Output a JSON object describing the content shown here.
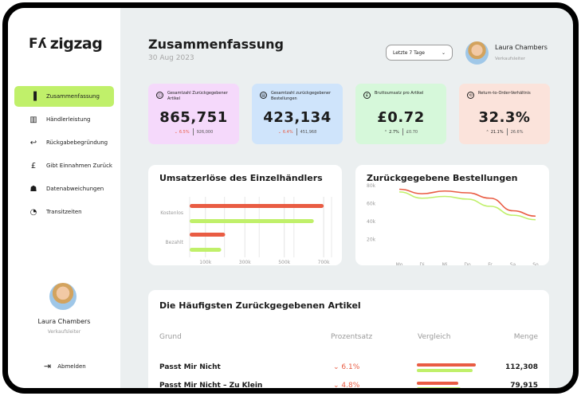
{
  "brand": {
    "name": "zigzag",
    "mark": "Fʎ"
  },
  "sidebar": {
    "items": [
      {
        "label": "Zusammenfassung",
        "icon": "file-icon",
        "glyph": "▐",
        "active": true
      },
      {
        "label": "Händlerleistung",
        "icon": "bar-chart-icon",
        "glyph": "▥",
        "active": false
      },
      {
        "label": "Rückgabebegründung",
        "icon": "return-arrow-icon",
        "glyph": "↩",
        "active": false
      },
      {
        "label": "Gibt Einnahmen Zurück",
        "icon": "pound-icon",
        "glyph": "£",
        "active": false
      },
      {
        "label": "Datenabweichungen",
        "icon": "cluster-icon",
        "glyph": "☗",
        "active": false
      },
      {
        "label": "Transitzeiten",
        "icon": "speedometer-icon",
        "glyph": "◔",
        "active": false
      }
    ],
    "user": {
      "name": "Laura Chambers",
      "role": "Verkaufsleiter"
    },
    "logout": "Abmelden"
  },
  "header": {
    "title": "Zusammenfassung",
    "date": "30 Aug 2023",
    "range": "Letzte 7 Tage",
    "user": {
      "name": "Laura Chambers",
      "role": "Verkaufsleiter"
    }
  },
  "kpis": [
    {
      "label": "Gesamtzahl Zurückgegebener Artikel",
      "value": "865,751",
      "change": "6.5%",
      "direction": "down",
      "previous": "926,000",
      "color": "#f5d9fb"
    },
    {
      "label": "Gesamtzahl zurückgegebener Bestellungen",
      "value": "423,134",
      "change": "6.4%",
      "direction": "down",
      "previous": "451,968",
      "color": "#cfe4fb"
    },
    {
      "label": "Bruttoumsatz pro Artikel",
      "value": "£0.72",
      "change": "2.7%",
      "direction": "up",
      "previous": "£0.70",
      "color": "#d6f8da"
    },
    {
      "label": "Return-to-Order-Verhältnis",
      "value": "32.3%",
      "change": "21.1%",
      "direction": "up",
      "previous": "26.6%",
      "color": "#fbe3db"
    }
  ],
  "chart_data": [
    {
      "type": "bar",
      "title": "Umsatzerlöse des Einzelhändlers",
      "orientation": "horizontal",
      "categories": [
        "Kostenlos",
        "Bezahlt"
      ],
      "series": [
        {
          "name": "Series 1",
          "color": "#e95c43",
          "values": [
            700000,
            200000
          ]
        },
        {
          "name": "Series 2",
          "color": "#c0f06a",
          "values": [
            650000,
            180000
          ]
        }
      ],
      "xticks": [
        "100k",
        "300k",
        "500k",
        "700k"
      ],
      "xlim": [
        20000,
        740000
      ]
    },
    {
      "type": "line",
      "title": "Zurückgegebene Bestellungen",
      "x": [
        "Mo",
        "Di",
        "Mi",
        "Do",
        "Fr",
        "Sa",
        "So"
      ],
      "yticks": [
        "80k",
        "60k",
        "40k",
        "20k"
      ],
      "ylim": [
        0,
        80000
      ],
      "series": [
        {
          "name": "Series 1",
          "color": "#e95c43",
          "values": [
            76000,
            71000,
            74000,
            72000,
            66000,
            52000,
            46000
          ]
        },
        {
          "name": "Series 2",
          "color": "#c0f06a",
          "values": [
            73000,
            66000,
            68000,
            65000,
            57000,
            47000,
            42000
          ]
        }
      ]
    }
  ],
  "table": {
    "title": "Die Häufigsten Zurückgegebenen Artikel",
    "headers": {
      "reason": "Grund",
      "percent": "Prozentsatz",
      "compare": "Vergleich",
      "quantity": "Menge"
    },
    "rows": [
      {
        "reason": "Passt Mir Nicht",
        "percent": "6.1%",
        "quantity": "112,308",
        "bar_current": 0.92,
        "bar_previous": 0.88
      },
      {
        "reason": "Passt Mir Nicht – Zu Klein",
        "percent": "4.8%",
        "quantity": "79,915",
        "bar_current": 0.65,
        "bar_previous": 0.69
      }
    ]
  }
}
